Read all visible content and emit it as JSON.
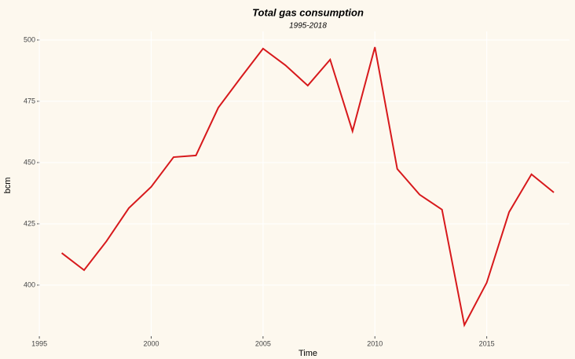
{
  "chart_data": {
    "type": "line",
    "title": "Total gas consumption",
    "subtitle": "1995-2018",
    "x_label": "Time",
    "y_label": "bcm",
    "x": [
      1996,
      1997,
      1998,
      1999,
      2000,
      2001,
      2002,
      2003,
      2004,
      2005,
      2006,
      2007,
      2008,
      2009,
      2010,
      2011,
      2012,
      2013,
      2014,
      2015,
      2016,
      2017,
      2018
    ],
    "series": [
      {
        "name": "bcm",
        "color": "#d7191c",
        "values": [
          413.1,
          406.1,
          417.9,
          431.4,
          440.1,
          452.2,
          452.9,
          472.4,
          484.6,
          496.5,
          489.7,
          481.4,
          492,
          462.8,
          497.1,
          447.4,
          436.9,
          430.8,
          383.7,
          401,
          429.8,
          445.2,
          437.8
        ]
      }
    ],
    "xlim": [
      1994.4,
      2018.7
    ],
    "ylim": [
      378.5,
      503.5
    ],
    "xticks": [
      1995,
      2000,
      2005,
      2010,
      2015
    ],
    "yticks": [
      400,
      425,
      450,
      475,
      500
    ],
    "grid": true
  }
}
